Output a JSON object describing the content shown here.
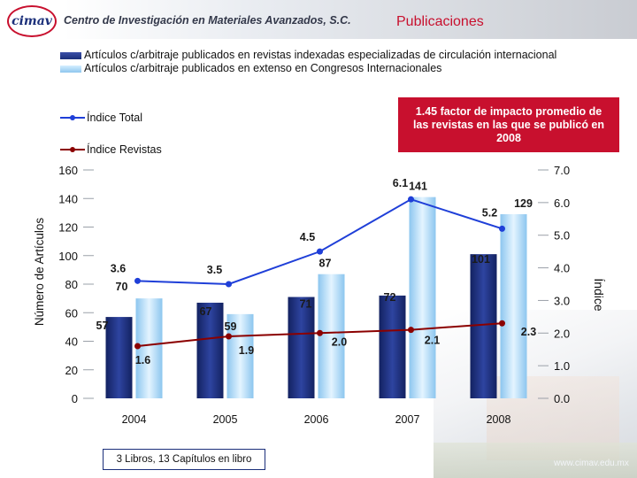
{
  "header": {
    "logo_text": "cimav",
    "center_name": "Centro de Investigación en Materiales Avanzados, S.C.",
    "page_title": "Publicaciones"
  },
  "note_box": {
    "text": "1.45 factor de impacto promedio de las revistas en las que se publicó en 2008"
  },
  "books_note": "3 Libros, 13 Capítulos en libro",
  "watermark": "www.cimav.edu.mx",
  "colors": {
    "brand_red": "#c8102e",
    "bar_dark": "#1b2f7a",
    "bar_light": "#a9d6f5",
    "line_total": "#1f3fd8",
    "line_revistas": "#8b0000"
  },
  "chart_data": {
    "type": "bar",
    "categories": [
      "2004",
      "2005",
      "2006",
      "2007",
      "2008"
    ],
    "ylabel": "Número de Artículos",
    "y2label": "Índice",
    "ylim": [
      0,
      160
    ],
    "y2lim": [
      0.0,
      7.0
    ],
    "yticks": [
      "0",
      "20",
      "40",
      "60",
      "80",
      "100",
      "120",
      "140",
      "160"
    ],
    "y2ticks": [
      "0.0",
      "1.0",
      "2.0",
      "3.0",
      "4.0",
      "5.0",
      "6.0",
      "7.0"
    ],
    "grid": false,
    "legend": "top",
    "series": [
      {
        "name": "Artículos c/arbitraje publicados en revistas indexadas especializadas de circulación internacional",
        "kind": "bar",
        "values": [
          57,
          67,
          71,
          72,
          101
        ],
        "labels": [
          "57",
          "67",
          "71",
          "72",
          "101"
        ]
      },
      {
        "name": "Artículos c/arbitraje publicados en extenso en Congresos Internacionales",
        "kind": "bar",
        "values": [
          70,
          59,
          87,
          141,
          129
        ],
        "labels": [
          "70",
          "59",
          "87",
          "141",
          "129"
        ]
      },
      {
        "name": "Índice Total",
        "kind": "line",
        "axis": "right",
        "values": [
          3.6,
          3.5,
          4.5,
          6.1,
          5.2
        ],
        "labels": [
          "3.6",
          "3.5",
          "4.5",
          "6.1",
          "5.2"
        ]
      },
      {
        "name": "Índice Revistas",
        "kind": "line",
        "axis": "right",
        "values": [
          1.6,
          1.9,
          2.0,
          2.1,
          2.3
        ],
        "labels": [
          "1.6",
          "1.9",
          "2.0",
          "2.1",
          "2.3"
        ]
      }
    ]
  }
}
